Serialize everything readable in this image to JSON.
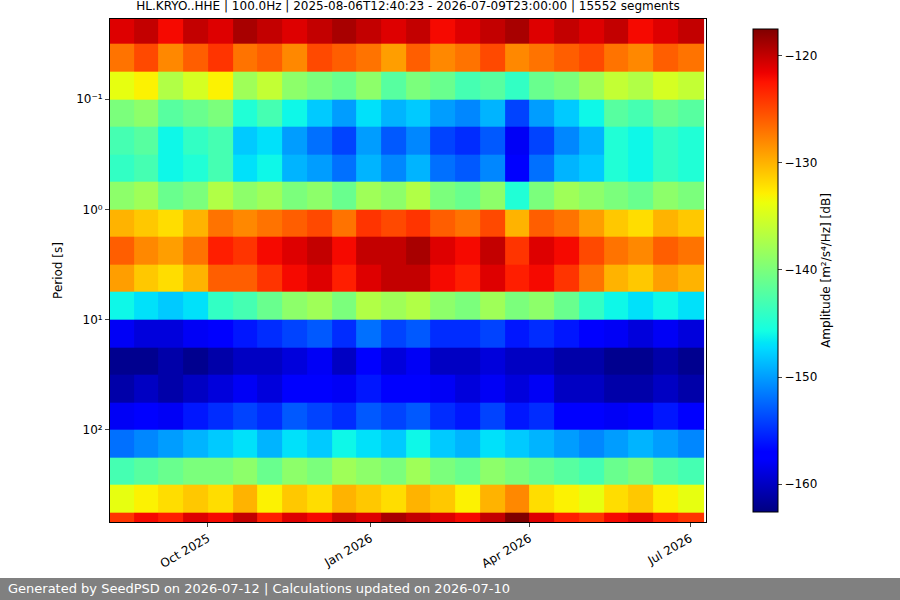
{
  "chart_data": {
    "type": "heatmap",
    "title": "HL.KRYO..HHE | 100.0Hz | 2025-08-06T12:40:23 - 2026-07-09T23:00:00 | 15552 segments",
    "ylabel": "Period [s]",
    "footer": "Generated by SeedPSD on 2026-07-12 | Calculations updated on 2026-07-10",
    "log": "y",
    "grid": true,
    "color": "jet",
    "xlim": [
      "2025-08-06 12:40:23",
      "2026-07-09 23:00:00"
    ],
    "xticks": [
      {
        "value": "2025-10-01",
        "label": "Oct 2025"
      },
      {
        "value": "2026-01-01",
        "label": "Jan 2026"
      },
      {
        "value": "2026-04-01",
        "label": "Apr 2026"
      },
      {
        "value": "2026-07-01",
        "label": "Jul 2026"
      }
    ],
    "ylim": [
      0.0187,
      686
    ],
    "yticks": [
      {
        "value": 0.1,
        "label": "10⁻¹"
      },
      {
        "value": 1,
        "label": "10⁰"
      },
      {
        "value": 10,
        "label": "10¹"
      },
      {
        "value": 100,
        "label": "10²"
      }
    ],
    "x": [
      "2025-08-06",
      "2025-08-20",
      "2025-09-03",
      "2025-09-17",
      "2025-10-01",
      "2025-10-15",
      "2025-10-29",
      "2025-11-12",
      "2025-11-26",
      "2025-12-10",
      "2025-12-24",
      "2026-01-07",
      "2026-01-21",
      "2026-02-04",
      "2026-02-18",
      "2026-03-04",
      "2026-03-18",
      "2026-04-01",
      "2026-04-15",
      "2026-04-29",
      "2026-05-13",
      "2026-05-27",
      "2026-06-10",
      "2026-06-24",
      "2026-07-09"
    ],
    "y": [
      0.0178,
      0.0316,
      0.0562,
      0.1,
      0.178,
      0.316,
      0.562,
      1,
      1.78,
      3.16,
      5.62,
      10,
      17.8,
      31.6,
      56.2,
      100,
      178,
      316,
      562,
      1000
    ],
    "z": [
      [
        -121,
        -120,
        -122,
        -120,
        -121,
        -119,
        -120,
        -121,
        -120,
        -119,
        -120,
        -121,
        -120,
        -122,
        -121,
        -120,
        -119,
        -121,
        -120,
        -121,
        -120,
        -122,
        -121,
        -120
      ],
      [
        -127,
        -125,
        -128,
        -126,
        -124,
        -127,
        -126,
        -128,
        -125,
        -126,
        -127,
        -129,
        -126,
        -128,
        -127,
        -125,
        -128,
        -127,
        -126,
        -125,
        -127,
        -128,
        -126,
        -127
      ],
      [
        -134,
        -133,
        -137,
        -135,
        -133,
        -138,
        -136,
        -139,
        -140,
        -141,
        -139,
        -142,
        -140,
        -141,
        -143,
        -142,
        -144,
        -141,
        -140,
        -138,
        -136,
        -137,
        -135,
        -136
      ],
      [
        -140,
        -139,
        -142,
        -141,
        -140,
        -145,
        -143,
        -146,
        -148,
        -150,
        -147,
        -149,
        -148,
        -150,
        -151,
        -149,
        -154,
        -150,
        -148,
        -146,
        -142,
        -143,
        -141,
        -142
      ],
      [
        -143,
        -142,
        -146,
        -144,
        -143,
        -148,
        -147,
        -150,
        -152,
        -154,
        -150,
        -153,
        -151,
        -154,
        -155,
        -153,
        -158,
        -154,
        -151,
        -149,
        -145,
        -146,
        -144,
        -145
      ],
      [
        -144,
        -143,
        -146,
        -145,
        -143,
        -147,
        -146,
        -149,
        -150,
        -152,
        -149,
        -151,
        -149,
        -152,
        -153,
        -151,
        -157,
        -152,
        -149,
        -148,
        -145,
        -146,
        -144,
        -145
      ],
      [
        -139,
        -138,
        -141,
        -140,
        -137,
        -139,
        -138,
        -140,
        -139,
        -141,
        -138,
        -139,
        -137,
        -140,
        -141,
        -139,
        -145,
        -140,
        -138,
        -139,
        -140,
        -141,
        -139,
        -140
      ],
      [
        -130,
        -131,
        -132,
        -130,
        -127,
        -128,
        -127,
        -126,
        -125,
        -127,
        -124,
        -125,
        -124,
        -126,
        -127,
        -125,
        -130,
        -126,
        -127,
        -129,
        -131,
        -132,
        -130,
        -131
      ],
      [
        -126,
        -128,
        -129,
        -127,
        -123,
        -124,
        -122,
        -121,
        -120,
        -122,
        -120,
        -120,
        -119,
        -121,
        -122,
        -120,
        -124,
        -121,
        -122,
        -125,
        -127,
        -128,
        -126,
        -127
      ],
      [
        -129,
        -131,
        -132,
        -130,
        -126,
        -126,
        -124,
        -122,
        -121,
        -123,
        -121,
        -120,
        -120,
        -122,
        -123,
        -121,
        -123,
        -122,
        -124,
        -127,
        -130,
        -131,
        -129,
        -130
      ],
      [
        -146,
        -147,
        -148,
        -147,
        -144,
        -143,
        -141,
        -139,
        -138,
        -140,
        -137,
        -138,
        -137,
        -139,
        -140,
        -138,
        -140,
        -139,
        -141,
        -144,
        -146,
        -147,
        -146,
        -147
      ],
      [
        -158,
        -159,
        -159,
        -158,
        -157,
        -156,
        -155,
        -154,
        -153,
        -155,
        -152,
        -154,
        -153,
        -155,
        -155,
        -154,
        -156,
        -155,
        -156,
        -157,
        -158,
        -159,
        -158,
        -159
      ],
      [
        -162,
        -162,
        -161,
        -162,
        -161,
        -160,
        -160,
        -159,
        -158,
        -160,
        -157,
        -159,
        -158,
        -160,
        -160,
        -159,
        -160,
        -160,
        -161,
        -161,
        -162,
        -162,
        -161,
        -162
      ],
      [
        -161,
        -160,
        -161,
        -160,
        -159,
        -158,
        -159,
        -157,
        -157,
        -158,
        -156,
        -157,
        -157,
        -158,
        -159,
        -158,
        -159,
        -158,
        -160,
        -160,
        -161,
        -161,
        -160,
        -161
      ],
      [
        -158,
        -157,
        -158,
        -156,
        -155,
        -154,
        -155,
        -153,
        -154,
        -155,
        -153,
        -154,
        -153,
        -155,
        -156,
        -154,
        -156,
        -155,
        -157,
        -157,
        -158,
        -157,
        -156,
        -157
      ],
      [
        -152,
        -151,
        -150,
        -149,
        -148,
        -147,
        -149,
        -147,
        -148,
        -146,
        -147,
        -148,
        -146,
        -148,
        -149,
        -147,
        -148,
        -149,
        -150,
        -151,
        -150,
        -149,
        -150,
        -151
      ],
      [
        -143,
        -142,
        -141,
        -140,
        -140,
        -139,
        -141,
        -139,
        -140,
        -138,
        -139,
        -140,
        -138,
        -140,
        -141,
        -139,
        -140,
        -141,
        -142,
        -143,
        -141,
        -140,
        -142,
        -143
      ],
      [
        -134,
        -133,
        -132,
        -131,
        -132,
        -130,
        -133,
        -131,
        -132,
        -130,
        -131,
        -132,
        -130,
        -131,
        -133,
        -130,
        -128,
        -132,
        -133,
        -134,
        -132,
        -131,
        -133,
        -134
      ],
      [
        -124,
        -122,
        -123,
        -121,
        -122,
        -120,
        -123,
        -121,
        -122,
        -120,
        -121,
        -119,
        -120,
        -121,
        -122,
        -120,
        -117,
        -121,
        -123,
        -124,
        -122,
        -121,
        -123,
        -124
      ]
    ],
    "colorbar": {
      "title": "Amplitude [m²/s⁴/Hz] [dB]",
      "range": [
        -162.6,
        -117.5
      ],
      "ticks": [
        -160,
        -150,
        -140,
        -130,
        -120
      ]
    }
  }
}
